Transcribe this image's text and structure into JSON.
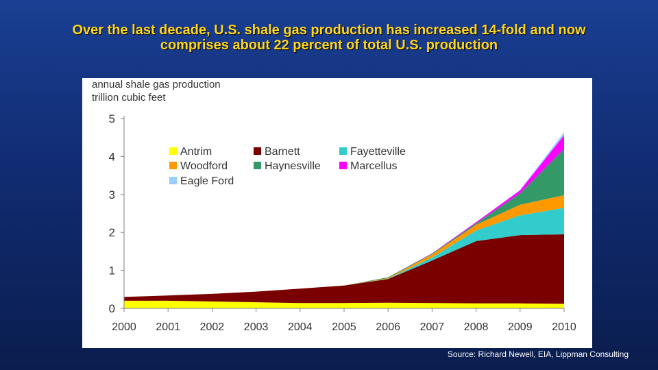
{
  "slide": {
    "title_line1": "Over the last decade, U.S. shale gas production has increased 14-fold and now",
    "title_line2": "comprises about  22 percent of total U.S. production",
    "source": "Source: Richard Newell, EIA, Lippman Consulting"
  },
  "colors": {
    "title": "#ffd51c",
    "background_top": "#1a3f93",
    "background_bottom": "#0a1d4e"
  },
  "chart_data": {
    "type": "area",
    "stacked": true,
    "ylabel_line1": "annual shale gas production",
    "ylabel_line2": "trillion cubic feet",
    "x": [
      "2000",
      "2001",
      "2002",
      "2003",
      "2004",
      "2005",
      "2006",
      "2007",
      "2008",
      "2009",
      "2010"
    ],
    "yticks": [
      "0",
      "1",
      "2",
      "3",
      "4",
      "5"
    ],
    "ylim": [
      0,
      5
    ],
    "grid": false,
    "legend_position": "top-left",
    "series": [
      {
        "name": "Antrim",
        "color": "#ffff00",
        "values": [
          0.2,
          0.2,
          0.18,
          0.16,
          0.14,
          0.14,
          0.15,
          0.14,
          0.13,
          0.13,
          0.12
        ]
      },
      {
        "name": "Barnett",
        "color": "#7a0000",
        "values": [
          0.1,
          0.14,
          0.2,
          0.28,
          0.38,
          0.46,
          0.62,
          1.12,
          1.64,
          1.8,
          1.83
        ]
      },
      {
        "name": "Fayetteville",
        "color": "#33cccc",
        "values": [
          0,
          0,
          0,
          0,
          0,
          0,
          0.01,
          0.08,
          0.28,
          0.52,
          0.7
        ]
      },
      {
        "name": "Woodford",
        "color": "#ff9900",
        "values": [
          0,
          0,
          0,
          0,
          0,
          0,
          0.02,
          0.08,
          0.15,
          0.28,
          0.33
        ]
      },
      {
        "name": "Haynesville",
        "color": "#339966",
        "values": [
          0,
          0,
          0,
          0,
          0,
          0,
          0.02,
          0.02,
          0.04,
          0.3,
          1.22
        ]
      },
      {
        "name": "Marcellus",
        "color": "#ff00ff",
        "values": [
          0,
          0,
          0,
          0,
          0,
          0,
          0,
          0.01,
          0.03,
          0.08,
          0.36
        ]
      },
      {
        "name": "Eagle Ford",
        "color": "#99ccff",
        "values": [
          0,
          0,
          0,
          0,
          0,
          0,
          0,
          0,
          0,
          0.01,
          0.08
        ]
      }
    ],
    "legend_order": [
      "Antrim",
      "Barnett",
      "Fayetteville",
      "Woodford",
      "Haynesville",
      "Marcellus",
      "Eagle Ford"
    ]
  }
}
